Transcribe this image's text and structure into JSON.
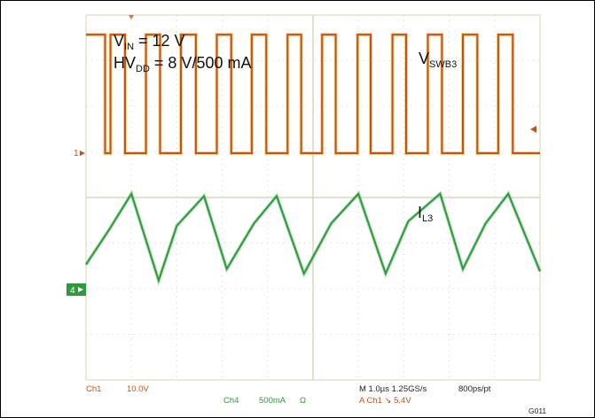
{
  "chart_data": {
    "type": "line",
    "title": "",
    "grid": true,
    "annotations": {
      "vin": {
        "main": "V",
        "sub": "IN",
        "rest": " = 12 V"
      },
      "hvdd": {
        "main": "HV",
        "sub": "DD",
        "rest": " = 8 V/500 mA"
      },
      "vswb3": {
        "main": "V",
        "sub": "SWB3"
      },
      "il3": {
        "main": "I",
        "sub": "L3"
      }
    },
    "timebase": {
      "divisions": 10,
      "time_per_div_us": 1.0
    },
    "ch1_marker": "1",
    "ch4_marker": "4",
    "series": [
      {
        "name": "",
        "color": "#c0531e",
        "x": [
          0,
          0.42,
          0.42,
          0.54,
          0.54,
          0.86,
          0.86,
          1.32,
          1.32,
          1.63,
          1.63,
          2.09,
          2.09,
          2.42,
          2.42,
          2.88,
          2.88,
          3.2,
          3.2,
          3.65,
          3.65,
          3.97,
          3.97,
          4.44,
          4.44,
          4.74,
          4.74,
          5.2,
          5.2,
          5.5,
          5.5,
          5.98,
          5.98,
          6.27,
          6.27,
          6.75,
          6.75,
          7.05,
          7.05,
          7.53,
          7.53,
          7.84,
          7.84,
          8.3,
          8.3,
          8.62,
          8.62,
          9.08,
          9.08,
          9.4,
          9.4,
          10
        ],
        "y": [
          2.6,
          2.6,
          0,
          0,
          2.6,
          2.6,
          0,
          0,
          2.6,
          2.6,
          0,
          0,
          2.6,
          2.6,
          0,
          0,
          2.6,
          2.6,
          0,
          0,
          2.6,
          2.6,
          0,
          0,
          2.6,
          2.6,
          0,
          0,
          2.6,
          2.6,
          0,
          0,
          2.6,
          2.6,
          0,
          0,
          2.6,
          2.6,
          0,
          0,
          2.6,
          2.6,
          0,
          0,
          2.6,
          2.6,
          0,
          0,
          2.6,
          2.6,
          0,
          0
        ]
      },
      {
        "name": "",
        "color": "#2e9a3c",
        "x": [
          0,
          0.5,
          1.0,
          1.6,
          2.0,
          2.6,
          3.1,
          3.7,
          4.2,
          4.8,
          5.4,
          6.0,
          6.6,
          7.1,
          7.8,
          8.3,
          8.8,
          9.3,
          10.0
        ],
        "y": [
          0.55,
          1.3,
          2.1,
          0.2,
          1.4,
          2.05,
          0.45,
          1.45,
          2.05,
          0.35,
          1.45,
          2.1,
          0.35,
          1.5,
          2.1,
          0.45,
          1.45,
          2.1,
          0.4
        ]
      }
    ],
    "readout": {
      "ch1_label": "Ch1",
      "ch1_scale": "10.0V",
      "ch4_label": "Ch4",
      "ch4_scale": "500mA",
      "ch4_unit": "Ω",
      "timebase": "M 1.0µs 1.25GS/s",
      "resolution": "800ps/pt",
      "trigger": "A  Ch1  ↘  5.4V"
    },
    "figure_id": "G011"
  }
}
